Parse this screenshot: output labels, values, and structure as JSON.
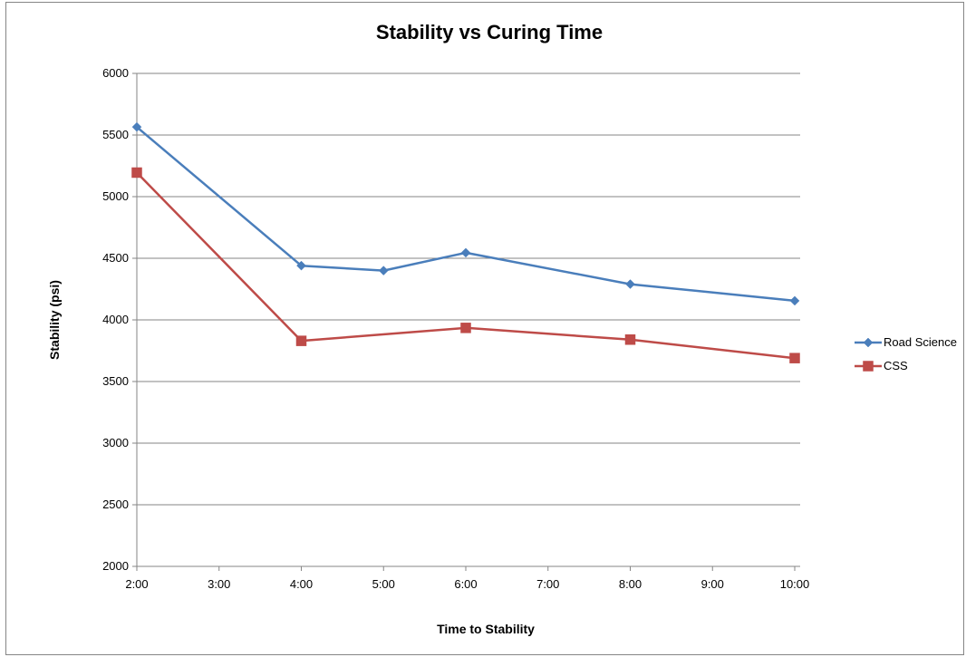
{
  "chart_data": {
    "type": "line",
    "title": "Stability vs Curing Time",
    "xlabel": "Time to Stability",
    "ylabel": "Stability (psi)",
    "x_ticks": [
      "2:00",
      "3:00",
      "4:00",
      "5:00",
      "6:00",
      "7:00",
      "8:00",
      "9:00",
      "10:00"
    ],
    "y_ticks": [
      "2000",
      "2500",
      "3000",
      "3500",
      "4000",
      "4500",
      "5000",
      "5500",
      "6000"
    ],
    "xlim": [
      "2:00",
      "10:00"
    ],
    "ylim": [
      2000,
      6000
    ],
    "grid": "horizontal",
    "legend_position": "right",
    "series": [
      {
        "name": "Road Science",
        "color": "#4a7ebb",
        "marker": "diamond",
        "points": [
          {
            "x": "2:00",
            "y": 5565
          },
          {
            "x": "4:00",
            "y": 4440
          },
          {
            "x": "5:00",
            "y": 4400
          },
          {
            "x": "6:00",
            "y": 4545
          },
          {
            "x": "8:00",
            "y": 4290
          },
          {
            "x": "10:00",
            "y": 4155
          }
        ]
      },
      {
        "name": "CSS",
        "color": "#be4b48",
        "marker": "square",
        "points": [
          {
            "x": "2:00",
            "y": 5195
          },
          {
            "x": "4:00",
            "y": 3830
          },
          {
            "x": "6:00",
            "y": 3935
          },
          {
            "x": "8:00",
            "y": 3840
          },
          {
            "x": "10:00",
            "y": 3690
          }
        ]
      }
    ]
  }
}
